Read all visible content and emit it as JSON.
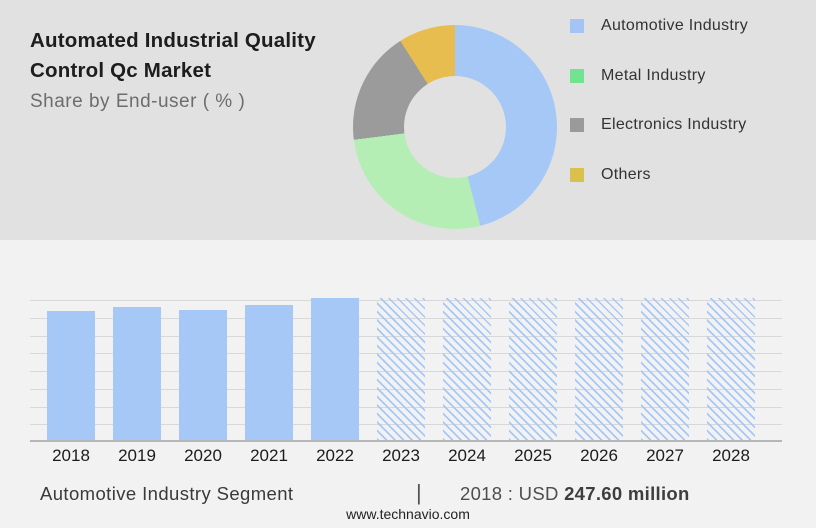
{
  "header": {
    "title_line1": "Automated Industrial Quality",
    "title_line2": "Control Qc Market",
    "subtitle": "Share by End-user ( % )"
  },
  "colors": {
    "top_background": "#e1e1e1",
    "bottom_background": "#f2f2f3",
    "bar_blue": "#a6c8f7",
    "gridline": "#d8d8d8",
    "axis_line": "#b7b7b7"
  },
  "legend": {
    "items": [
      {
        "label": "Automotive Industry",
        "color": "#a3c4f5"
      },
      {
        "label": "Metal Industry",
        "color": "#72e38e"
      },
      {
        "label": "Electronics Industry",
        "color": "#9a9a9a"
      },
      {
        "label": "Others",
        "color": "#d9c14b"
      }
    ]
  },
  "donut": {
    "segments": [
      {
        "label": "Automotive Industry",
        "color": "#a6c8f7",
        "pct": 46
      },
      {
        "label": "Metal Industry",
        "color": "#b5eeb5",
        "pct": 27
      },
      {
        "label": "Electronics Industry",
        "color": "#9b9b9b",
        "pct": 18
      },
      {
        "label": "Others",
        "color": "#e7bd4f",
        "pct": 9
      }
    ]
  },
  "bar_chart": {
    "bars": [
      {
        "year": "2018",
        "height_fraction": 0.91,
        "hatched": false
      },
      {
        "year": "2019",
        "height_fraction": 0.94,
        "hatched": false
      },
      {
        "year": "2020",
        "height_fraction": 0.915,
        "hatched": false
      },
      {
        "year": "2021",
        "height_fraction": 0.95,
        "hatched": false
      },
      {
        "year": "2022",
        "height_fraction": 1.0,
        "hatched": false
      },
      {
        "year": "2023",
        "height_fraction": 1.0,
        "hatched": true
      },
      {
        "year": "2024",
        "height_fraction": 1.0,
        "hatched": true
      },
      {
        "year": "2025",
        "height_fraction": 1.0,
        "hatched": true
      },
      {
        "year": "2026",
        "height_fraction": 1.0,
        "hatched": true
      },
      {
        "year": "2027",
        "height_fraction": 1.0,
        "hatched": true
      },
      {
        "year": "2028",
        "height_fraction": 1.0,
        "hatched": true
      }
    ]
  },
  "caption": {
    "segment_label": "Automotive Industry Segment",
    "separator": "|",
    "stat_prefix": "2018 : USD ",
    "stat_value": "247.60 million"
  },
  "footer": {
    "url": "www.technavio.com"
  },
  "chart_data": [
    {
      "type": "pie",
      "donut": true,
      "title": "Automated Industrial Quality Control Qc Market",
      "subtitle": "Share by End-user ( % )",
      "labels": [
        "Automotive Industry",
        "Metal Industry",
        "Electronics Industry",
        "Others"
      ],
      "values": [
        46,
        27,
        18,
        9
      ],
      "units": "percent share, estimated from arc angles",
      "legend_position": "right",
      "colors": [
        "#a6c8f7",
        "#b5eeb5",
        "#9b9b9b",
        "#e7bd4f"
      ]
    },
    {
      "type": "bar",
      "title": "Automotive Industry Segment",
      "categories": [
        "2018",
        "2019",
        "2020",
        "2021",
        "2022",
        "2023",
        "2024",
        "2025",
        "2026",
        "2027",
        "2028"
      ],
      "values": [
        247.6,
        255.2,
        248.1,
        257.6,
        271.2,
        null,
        null,
        null,
        null,
        null,
        null
      ],
      "ylabel": "USD million",
      "xlabel": "",
      "annotation": "2018 : USD 247.60 million",
      "historical_solid_years": [
        "2018",
        "2019",
        "2020",
        "2021",
        "2022"
      ],
      "forecast_hatched_full_height_years": [
        "2023",
        "2024",
        "2025",
        "2026",
        "2027",
        "2028"
      ],
      "grid": true,
      "y_axis_tick_labels_shown": false
    }
  ]
}
